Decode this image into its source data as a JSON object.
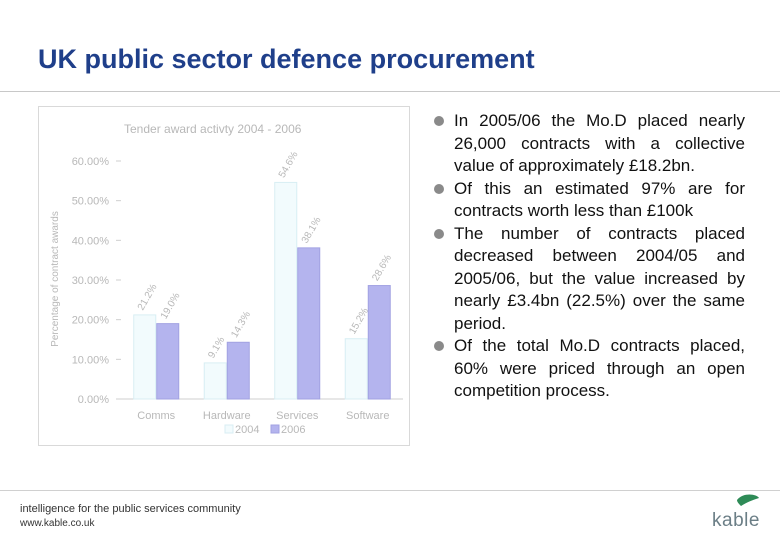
{
  "title": "UK public sector defence procurement",
  "bullets": [
    "In 2005/06 the Mo.D placed nearly 26,000 contracts with a collective value of approximately £18.2bn.",
    "Of this an estimated 97% are for contracts worth less than £100k",
    "The number of contracts placed decreased between 2004/05 and 2005/06, but the value increased by nearly £3.4bn (22.5%) over the same period.",
    "Of the total Mo.D contracts placed, 60% were priced through an open competition process."
  ],
  "footer": {
    "tagline": "intelligence for the public services community",
    "url": "www.kable.co.uk",
    "brand": "kable"
  },
  "colors": {
    "title": "#1f3f8a",
    "series_2004_fill": "#f2fbfd",
    "series_2006_fill": "#b4b4ee",
    "chart_text": "#b8b8b8",
    "brand_green": "#2e8b57"
  },
  "chart_data": {
    "type": "bar",
    "title": "Tender award activty 2004 - 2006",
    "ylabel": "Percentage of contract awards",
    "xlabel": "",
    "categories": [
      "Comms",
      "Hardware",
      "Services",
      "Software"
    ],
    "series": [
      {
        "name": "2004",
        "values": [
          21.2,
          9.1,
          54.6,
          15.2
        ]
      },
      {
        "name": "2006",
        "values": [
          19.0,
          14.3,
          38.1,
          28.6
        ]
      }
    ],
    "data_labels": [
      [
        "21.2%",
        "9.1%",
        "54.6%",
        "15.2%"
      ],
      [
        "19.0%",
        "14.3%",
        "38.1%",
        "28.6%"
      ]
    ],
    "ylim": [
      0,
      60
    ],
    "yticks": [
      "0.00%",
      "10.00%",
      "20.00%",
      "30.00%",
      "40.00%",
      "50.00%",
      "60.00%"
    ],
    "grid": false,
    "legend_position": "bottom"
  }
}
